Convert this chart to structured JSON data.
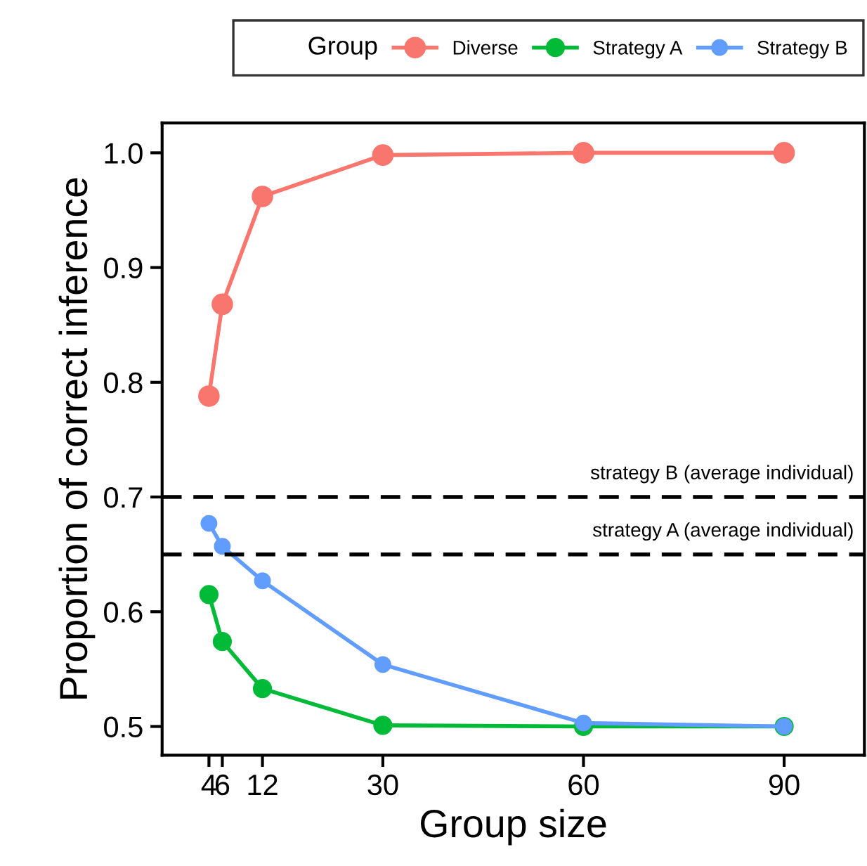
{
  "chart_data": {
    "type": "line",
    "xlabel": "Group size",
    "ylabel": "Proportion of correct inference",
    "legend_title": "Group",
    "legend": "top",
    "marker": "circle",
    "line_style": "solid",
    "grid": false,
    "x": [
      4,
      6,
      12,
      30,
      60,
      90
    ],
    "xlim": [
      -3,
      102
    ],
    "xticks": [
      4,
      6,
      12,
      30,
      60,
      90
    ],
    "ylim": [
      0.475,
      1.026
    ],
    "yticks": [
      {
        "value": 0.5,
        "label": "0.5"
      },
      {
        "value": 0.6,
        "label": "0.6"
      },
      {
        "value": 0.7,
        "label": "0.7"
      },
      {
        "value": 0.8,
        "label": "0.8"
      },
      {
        "value": 0.9,
        "label": "0.9"
      },
      {
        "value": 1.0,
        "label": "1.0"
      }
    ],
    "series": [
      {
        "name": "Diverse",
        "color": "#f8766d",
        "values": [
          0.788,
          0.868,
          0.962,
          0.998,
          1.0,
          1.0
        ]
      },
      {
        "name": "Strategy A",
        "color": "#00ba38",
        "values": [
          0.615,
          0.574,
          0.533,
          0.501,
          0.5,
          0.5
        ]
      },
      {
        "name": "Strategy B",
        "color": "#619cff",
        "values": [
          0.677,
          0.657,
          0.627,
          0.554,
          0.503,
          0.5
        ]
      }
    ],
    "ref_lines": [
      {
        "axis": "y",
        "value": 0.7,
        "label": "strategy B (average individual)",
        "color": "#000000",
        "line_style": "dashed"
      },
      {
        "axis": "y",
        "value": 0.65,
        "label": "strategy A (average individual)",
        "color": "#000000",
        "line_style": "dashed"
      }
    ]
  }
}
